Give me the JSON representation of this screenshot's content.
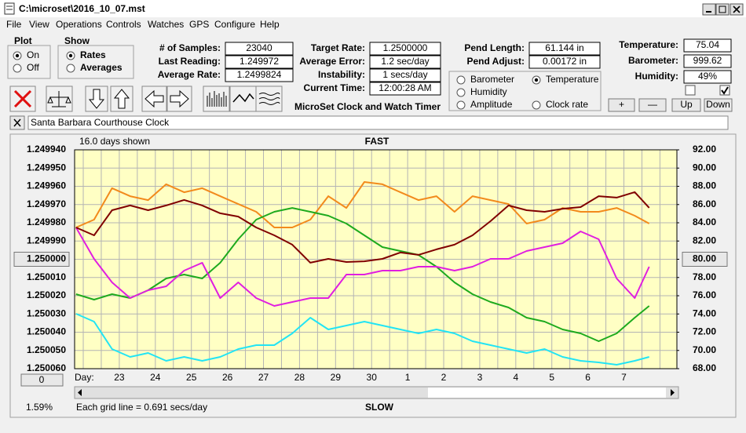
{
  "window": {
    "title": "C:\\microset\\2016_10_07.mst"
  },
  "menu": [
    "File",
    "View",
    "Operations",
    "Controls",
    "Watches",
    "GPS",
    "Configure",
    "Help"
  ],
  "plot_group": {
    "label": "Plot",
    "options": [
      "On",
      "Off"
    ],
    "selected": 0
  },
  "show_group": {
    "label": "Show",
    "options": [
      "Rates",
      "Averages"
    ],
    "selected": 0
  },
  "fields": [
    {
      "label": "# of Samples:",
      "value": "23040"
    },
    {
      "label": "Last Reading:",
      "value": "1.249972"
    },
    {
      "label": "Average Rate:",
      "value": "1.2499824"
    },
    {
      "label": "Target Rate:",
      "value": "1.2500000"
    },
    {
      "label": "Average Error:",
      "value": "1.2 sec/day"
    },
    {
      "label": "Instability:",
      "value": "1 secs/day"
    },
    {
      "label": "Current Time:",
      "value": "12:00:28 AM"
    },
    {
      "label": "Pend Length:",
      "value": "61.144 in"
    },
    {
      "label": "Pend Adjust:",
      "value": "0.00172 in"
    },
    {
      "label": "Temperature:",
      "value": "75.04"
    },
    {
      "label": "Barometer:",
      "value": "999.62"
    },
    {
      "label": "Humidity:",
      "value": "49%"
    }
  ],
  "app_name": "MicroSet Clock and Watch Timer",
  "checkboxes": [
    false,
    true
  ],
  "buttons": [
    "+",
    "—",
    "Up",
    "Down"
  ],
  "clock_name": "Santa Barbara Courthouse Clock",
  "chart_data": {
    "type": "line",
    "top_label": "FAST",
    "bottom_label": "SLOW",
    "days_shown": "16.0 days shown",
    "x_label": "Day:",
    "footnote": "Each grid line = 0.691 secs/day",
    "offset_button": "0",
    "status": "1.59%",
    "grid": true,
    "selected_series": 1,
    "xlim": [
      -1.24,
      15.47
    ],
    "xticks": [
      {
        "value": 0,
        "label": "23"
      },
      {
        "value": 1,
        "label": "24"
      },
      {
        "value": 2,
        "label": "25"
      },
      {
        "value": 3,
        "label": "26"
      },
      {
        "value": 4,
        "label": "27"
      },
      {
        "value": 5,
        "label": "28"
      },
      {
        "value": 6,
        "label": "29"
      },
      {
        "value": 7,
        "label": "30"
      },
      {
        "value": 8,
        "label": "1"
      },
      {
        "value": 9,
        "label": "2"
      },
      {
        "value": 10,
        "label": "3"
      },
      {
        "value": 11,
        "label": "4"
      },
      {
        "value": 12,
        "label": "5"
      },
      {
        "value": 13,
        "label": "6"
      },
      {
        "value": 14,
        "label": "7"
      }
    ],
    "x_minor_ticks": [
      -1,
      -0.5,
      0.5,
      1.5,
      2.5,
      3.5,
      4.5,
      5.5,
      6.5,
      7.5,
      8.5,
      9.5,
      10.5,
      11.5,
      12.5,
      13.5,
      14.5,
      15
    ],
    "ylim": [
      1.25006,
      1.24994
    ],
    "yticks": [
      {
        "value": 1.24994,
        "label": "1.249940"
      },
      {
        "value": 1.24995,
        "label": "1.249950"
      },
      {
        "value": 1.24996,
        "label": "1.249960"
      },
      {
        "value": 1.24997,
        "label": "1.249970"
      },
      {
        "value": 1.24998,
        "label": "1.249980"
      },
      {
        "value": 1.24999,
        "label": "1.249990"
      },
      {
        "value": 1.25,
        "label": "1.250000"
      },
      {
        "value": 1.25001,
        "label": "1.250010"
      },
      {
        "value": 1.25002,
        "label": "1.250020"
      },
      {
        "value": 1.25003,
        "label": "1.250030"
      },
      {
        "value": 1.25004,
        "label": "1.250040"
      },
      {
        "value": 1.25005,
        "label": "1.250050"
      },
      {
        "value": 1.25006,
        "label": "1.250060"
      }
    ],
    "highlight_ytick": 6,
    "y2lim": [
      68,
      92
    ],
    "y2ticks": [
      {
        "value": 92,
        "label": "92.00"
      },
      {
        "value": 90,
        "label": "90.00"
      },
      {
        "value": 88,
        "label": "88.00"
      },
      {
        "value": 86,
        "label": "86.00"
      },
      {
        "value": 84,
        "label": "84.00"
      },
      {
        "value": 82,
        "label": "82.00"
      },
      {
        "value": 80,
        "label": "80.00"
      },
      {
        "value": 78,
        "label": "78.00"
      },
      {
        "value": 76,
        "label": "76.00"
      },
      {
        "value": 74,
        "label": "74.00"
      },
      {
        "value": 72,
        "label": "72.00"
      },
      {
        "value": 70,
        "label": "70.00"
      },
      {
        "value": 68,
        "label": "68.00"
      }
    ],
    "highlight_y2tick": 6,
    "x": [
      -1.2,
      -0.7,
      -0.2,
      0.3,
      0.8,
      1.3,
      1.8,
      2.3,
      2.8,
      3.3,
      3.8,
      4.3,
      4.8,
      5.3,
      5.8,
      6.3,
      6.8,
      7.3,
      7.8,
      8.3,
      8.8,
      9.3,
      9.8,
      10.3,
      10.8,
      11.3,
      11.8,
      12.3,
      12.8,
      13.3,
      13.8,
      14.3,
      14.7
    ],
    "series": [
      {
        "name": "Barometer",
        "color": "#f28a1c",
        "label_color": "#e07800",
        "axis": "y2",
        "values": [
          83.48,
          84.34,
          87.79,
          86.92,
          86.49,
          88.22,
          87.35,
          87.79,
          86.92,
          86.06,
          85.2,
          83.48,
          83.48,
          84.34,
          86.92,
          85.63,
          88.47,
          88.22,
          87.35,
          86.49,
          86.92,
          85.2,
          86.92,
          86.49,
          86.06,
          83.91,
          84.34,
          85.63,
          85.2,
          85.2,
          85.63,
          84.77,
          83.91
        ]
      },
      {
        "name": "Temperature",
        "color": "#1eaa1e",
        "label_color": "#008000",
        "axis": "y2",
        "values": [
          76.17,
          75.57,
          76.17,
          75.74,
          76.6,
          77.89,
          78.32,
          77.89,
          79.61,
          82.19,
          84.34,
          85.2,
          85.63,
          85.2,
          84.77,
          83.91,
          82.62,
          81.33,
          80.9,
          80.47,
          79.18,
          77.46,
          76.17,
          75.31,
          74.71,
          73.59,
          73.16,
          72.3,
          71.87,
          71.01,
          71.87,
          73.59,
          74.88
        ]
      },
      {
        "name": "Humidity",
        "color": "#e01ee0",
        "label_color": "#c000c0",
        "axis": "y2",
        "values": [
          83.48,
          80.04,
          77.46,
          75.74,
          76.6,
          77.03,
          78.75,
          79.61,
          75.74,
          77.46,
          75.74,
          74.88,
          75.31,
          75.74,
          75.74,
          78.32,
          78.32,
          78.75,
          78.75,
          79.18,
          79.18,
          78.75,
          79.18,
          80.04,
          80.04,
          80.9,
          81.33,
          81.76,
          83.05,
          82.19,
          77.89,
          75.74,
          79.18
        ]
      },
      {
        "name": "Amplitude",
        "color": "#22e4f4",
        "label_color": "#00c0e0",
        "axis": "y2",
        "values": [
          74.02,
          73.16,
          70.15,
          69.29,
          69.72,
          68.86,
          69.29,
          68.86,
          69.29,
          70.15,
          70.58,
          70.58,
          71.87,
          73.59,
          72.3,
          72.73,
          73.16,
          72.73,
          72.3,
          71.87,
          72.3,
          71.87,
          71.01,
          70.58,
          70.15,
          69.72,
          70.15,
          69.29,
          68.86,
          68.69,
          68.43,
          68.86,
          69.29
        ]
      },
      {
        "name": "Clock rate",
        "color": "#800000",
        "label_color": "#800000",
        "axis": "y",
        "values": [
          1.2499826,
          1.2499869,
          1.2499731,
          1.2499705,
          1.2499731,
          1.2499705,
          1.2499675,
          1.2499705,
          1.2499748,
          1.2499766,
          1.2499826,
          1.2499869,
          1.249992,
          1.2500019,
          1.2499998,
          1.2500015,
          1.2500011,
          1.2499998,
          1.2499963,
          1.2499976,
          1.2499946,
          1.249992,
          1.2499869,
          1.2499791,
          1.2499705,
          1.2499731,
          1.249974,
          1.2499723,
          1.2499714,
          1.2499654,
          1.2499662,
          1.2499632,
          1.2499718
        ]
      }
    ]
  }
}
